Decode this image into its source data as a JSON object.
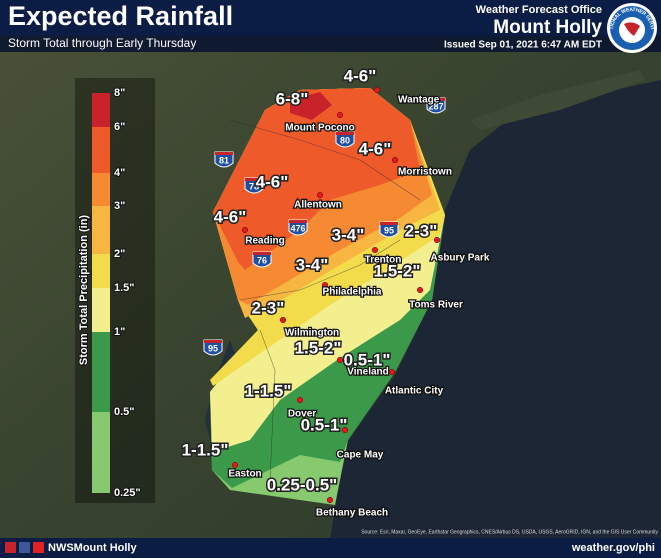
{
  "header": {
    "title": "Expected Rainfall",
    "subtitle": "Storm Total through Early Thursday",
    "office": "Weather Forecast Office",
    "office_name": "Mount Holly",
    "issued": "Issued Sep 01, 2021 6:47 AM EDT",
    "logo_text": "NATIONAL WEATHER SERVICE"
  },
  "legend": {
    "title": "Storm Total Precipitation (in)",
    "labels": [
      "8\"",
      "6\"",
      "4\"",
      "3\"",
      "2\"",
      "1.5\"",
      "1\"",
      "0.5\"",
      "0.25\""
    ],
    "colors": [
      "#c8232a",
      "#ef5a2a",
      "#f58a33",
      "#f7b541",
      "#f3dc4c",
      "#f4ef8e",
      "#3a9a4a",
      "#86c96e"
    ]
  },
  "amounts": [
    "6-8\"",
    "4-6\"",
    "4-6\"",
    "4-6\"",
    "4-6\"",
    "3-4\"",
    "3-4\"",
    "2-3\"",
    "2-3\"",
    "1.5-2\"",
    "1.5-2\"",
    "1-1.5\"",
    "1-1.5\"",
    "0.5-1\"",
    "0.5-1\"",
    "0.25-0.5\""
  ],
  "cities": [
    "Wantage",
    "Mount Pocono",
    "Morristown",
    "Allentown",
    "Reading",
    "Trenton",
    "Asbury Park",
    "Philadelphia",
    "Toms River",
    "Wilmington",
    "Vineland",
    "Atlantic City",
    "Dover",
    "Cape May",
    "Easton",
    "Bethany Beach"
  ],
  "highways": [
    "287",
    "81",
    "80",
    "78",
    "476",
    "95",
    "76",
    "95"
  ],
  "footer": {
    "handle": "NWSMount Holly",
    "url": "weather.gov/phi",
    "source": "Source: Esri, Maxar, GeoEye, Earthstar Geographics, CNES/Airbus DS, USDA, USGS, AeroGRID, IGN, and the GIS User Community"
  }
}
